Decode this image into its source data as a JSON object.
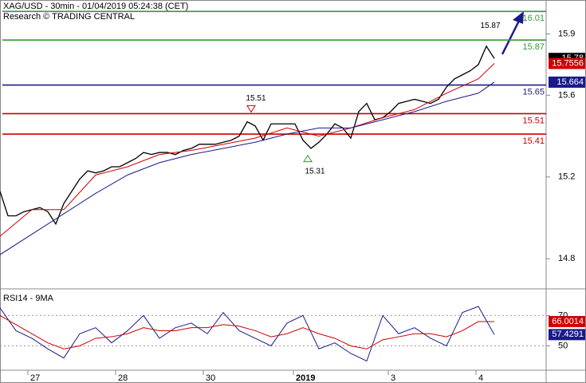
{
  "chart_data": [
    {
      "type": "line",
      "title": "XAG/USD - 30min - 01/04/2019 05:24:38 (CET)",
      "subtitle": "Research © TRADING CENTRAL",
      "xlim": [
        0,
        685
      ],
      "ylim": [
        14.68,
        16.066
      ],
      "yticks": [
        14.8,
        15.2,
        15.6,
        15.9
      ],
      "series": [
        {
          "color": "#000000",
          "x": [
            0,
            10,
            20,
            30,
            40,
            50,
            60,
            70,
            80,
            90,
            100,
            110,
            120,
            130,
            140,
            150,
            160,
            170,
            180,
            190,
            200,
            210,
            220,
            230,
            240,
            250,
            260,
            270,
            280,
            290,
            300,
            310,
            320,
            330,
            340,
            350,
            360,
            370,
            380,
            390,
            400,
            410,
            420,
            430,
            440,
            450,
            460,
            470,
            480,
            490,
            500,
            510,
            520,
            530,
            540,
            550,
            560,
            570,
            580,
            590,
            600,
            610,
            620
          ],
          "values": [
            15.13,
            15.01,
            15.01,
            15.03,
            15.04,
            15.05,
            15.03,
            14.97,
            15.07,
            15.13,
            15.19,
            15.23,
            15.22,
            15.23,
            15.25,
            15.25,
            15.27,
            15.29,
            15.32,
            15.31,
            15.32,
            15.32,
            15.31,
            15.33,
            15.34,
            15.36,
            15.36,
            15.36,
            15.37,
            15.38,
            15.4,
            15.47,
            15.45,
            15.38,
            15.46,
            15.46,
            15.46,
            15.46,
            15.38,
            15.34,
            15.37,
            15.41,
            15.46,
            15.44,
            15.39,
            15.52,
            15.56,
            15.48,
            15.49,
            15.52,
            15.56,
            15.57,
            15.58,
            15.57,
            15.56,
            15.58,
            15.64,
            15.68,
            15.7,
            15.72,
            15.75,
            15.84,
            15.78
          ]
        },
        {
          "color": "#cc0000",
          "x": [
            0,
            40,
            80,
            120,
            160,
            200,
            240,
            280,
            320,
            360,
            400,
            440,
            480,
            520,
            560,
            600,
            620
          ],
          "values": [
            14.91,
            15.04,
            15.04,
            15.21,
            15.25,
            15.31,
            15.33,
            15.36,
            15.39,
            15.44,
            15.4,
            15.44,
            15.49,
            15.53,
            15.61,
            15.68,
            15.7556
          ]
        },
        {
          "color": "#1a1a8c",
          "x": [
            0,
            40,
            80,
            120,
            160,
            200,
            240,
            280,
            320,
            360,
            400,
            440,
            480,
            520,
            560,
            600,
            620
          ],
          "values": [
            14.82,
            14.92,
            15.02,
            15.12,
            15.21,
            15.27,
            15.31,
            15.34,
            15.37,
            15.41,
            15.44,
            15.44,
            15.48,
            15.52,
            15.57,
            15.61,
            15.664
          ]
        }
      ],
      "levels": [
        {
          "value": 16.01,
          "color": "#339933"
        },
        {
          "value": 15.87,
          "color": "#339933"
        },
        {
          "value": 15.65,
          "color": "#1a1a8c"
        },
        {
          "value": 15.51,
          "color": "#cc0000"
        },
        {
          "value": 15.41,
          "color": "#cc0000"
        }
      ],
      "high_marker": {
        "x": 315,
        "value": 15.51,
        "color": "#cc0000"
      },
      "low_marker": {
        "x": 386,
        "value": 15.31,
        "color": "#339933"
      },
      "peak_label": {
        "x": 615,
        "value": 15.87
      }
    },
    {
      "type": "line",
      "title": "RSI14 - 9MA",
      "xlim": [
        0,
        685
      ],
      "ylim": [
        35,
        86
      ],
      "yticks": [
        50,
        70
      ],
      "xticks": [
        {
          "value": 35,
          "label": "27"
        },
        {
          "value": 145,
          "label": "28"
        },
        {
          "value": 255,
          "label": "30"
        },
        {
          "value": 368,
          "label": "2019"
        },
        {
          "value": 487,
          "label": "3"
        },
        {
          "value": 597,
          "label": "4"
        }
      ],
      "series": [
        {
          "color": "#1a1a8c",
          "x": [
            0,
            20,
            40,
            60,
            80,
            100,
            120,
            140,
            160,
            180,
            200,
            220,
            240,
            260,
            280,
            300,
            320,
            340,
            360,
            380,
            400,
            420,
            440,
            460,
            480,
            500,
            520,
            540,
            560,
            580,
            600,
            620
          ],
          "values": [
            75,
            60,
            55,
            48,
            42,
            58,
            62,
            52,
            60,
            70,
            55,
            62,
            65,
            58,
            72,
            60,
            55,
            50,
            65,
            70,
            48,
            52,
            45,
            40,
            70,
            58,
            62,
            55,
            50,
            72,
            76,
            57.4291
          ]
        },
        {
          "color": "#cc0000",
          "x": [
            0,
            20,
            40,
            60,
            80,
            100,
            120,
            140,
            160,
            180,
            200,
            220,
            240,
            260,
            280,
            300,
            320,
            340,
            360,
            380,
            400,
            420,
            440,
            460,
            480,
            500,
            520,
            540,
            560,
            580,
            600,
            620
          ],
          "values": [
            70,
            64,
            58,
            52,
            48,
            50,
            55,
            56,
            58,
            62,
            60,
            60,
            62,
            62,
            64,
            63,
            60,
            56,
            58,
            62,
            58,
            55,
            50,
            48,
            54,
            56,
            58,
            58,
            56,
            60,
            66,
            66.0014
          ]
        }
      ]
    }
  ]
}
